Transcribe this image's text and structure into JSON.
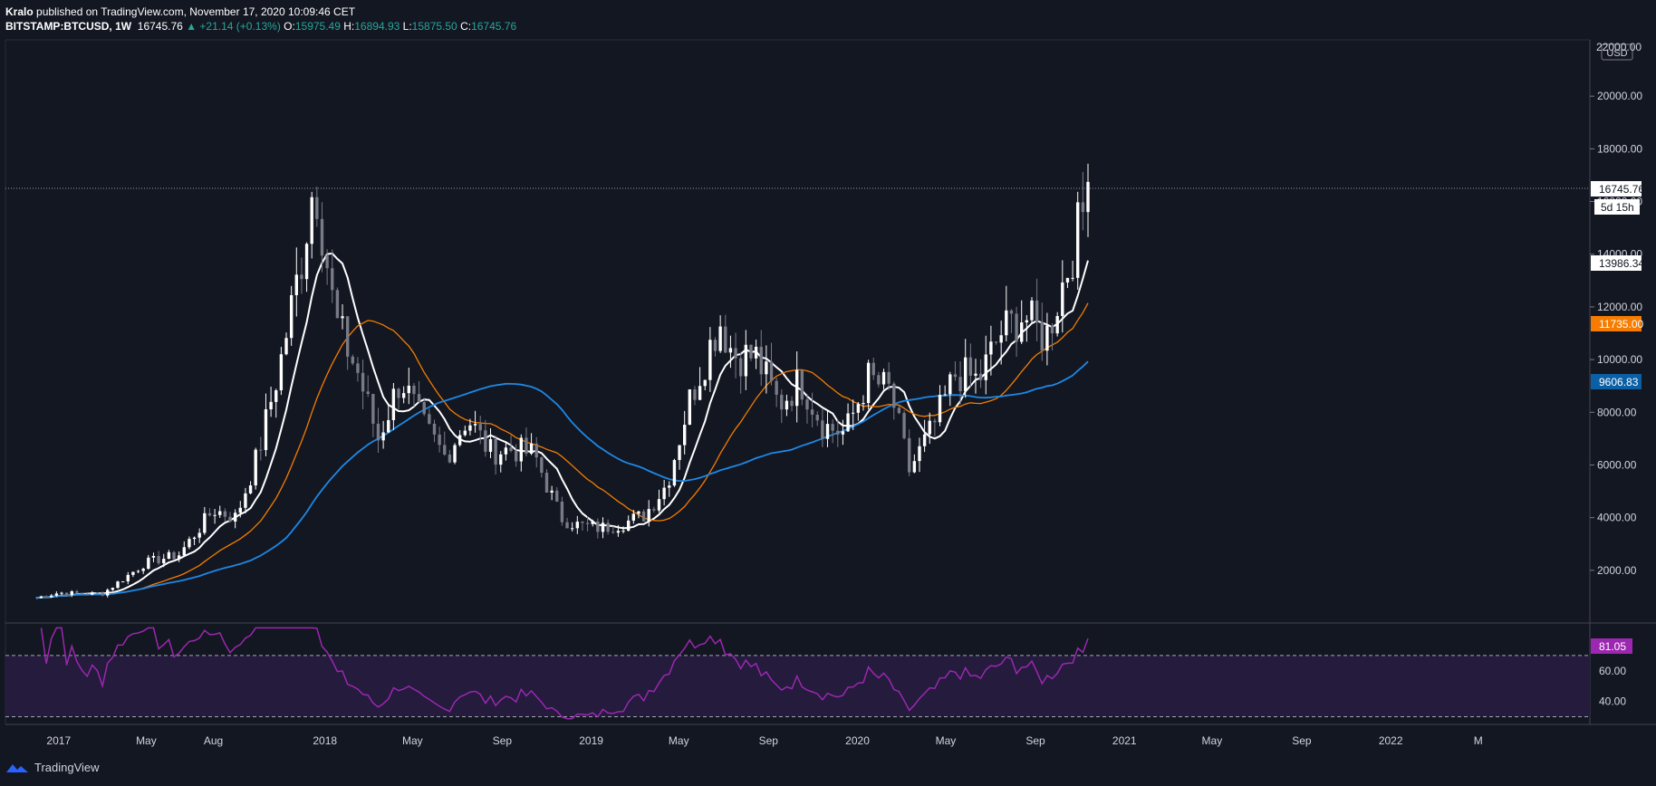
{
  "header": {
    "author": "Kralo",
    "published": "published on TradingView.com, November 17, 2020 10:09:46 CET"
  },
  "symbol_line": {
    "symbol": "BITSTAMP:BTCUSD, 1W",
    "last": "16745.76",
    "change": "+21.14 (+0.13%)",
    "open_label": "O:",
    "open": "15975.49",
    "high_label": "H:",
    "high": "16894.93",
    "low_label": "L:",
    "low": "15875.50",
    "close_label": "C:",
    "close": "16745.76"
  },
  "price_axis": {
    "currency": "USD",
    "ticks": [
      "20000.00",
      "18000.00",
      "16000.00",
      "14000.00",
      "12000.00",
      "10000.00",
      "8000.00",
      "6000.00",
      "4000.00",
      "2000.00"
    ],
    "top_label": "22000.00",
    "labels": {
      "last_price": "16745.76",
      "countdown": "5d 15h",
      "ma_white": "13986.34",
      "ma_orange": "11735.00",
      "ma_blue": "9606.83"
    }
  },
  "rsi_axis": {
    "ticks": [
      "60.00",
      "40.00"
    ],
    "value_label": "81.05"
  },
  "time_axis": {
    "labels": [
      "2017",
      "May",
      "Aug",
      "2018",
      "May",
      "Sep",
      "2019",
      "May",
      "Sep",
      "2020",
      "May",
      "Sep",
      "2021",
      "May",
      "Sep",
      "2022",
      "M"
    ]
  },
  "footer": {
    "brand": "TradingView"
  },
  "colors": {
    "background": "#131722",
    "up_candle": "#ffffff",
    "down_candle": "#787b86",
    "ma_white": "#ffffff",
    "ma_orange": "#f57c00",
    "ma_blue": "#1e88e5",
    "rsi_line": "#9c27b0",
    "rsi_band": "#2a1f45"
  },
  "chart_data": {
    "type": "candlestick",
    "x_unit": "date (weekly candles)",
    "y_unit": "USD",
    "ylim": [
      0,
      22000
    ],
    "series": [
      {
        "name": "BTCUSD",
        "x": [
          "2016-12-01",
          "2017-01-01",
          "2017-03-01",
          "2017-05-01",
          "2017-06-15",
          "2017-08-01",
          "2017-09-01",
          "2017-10-01",
          "2017-11-01",
          "2017-12-01",
          "2017-12-18",
          "2018-01-15",
          "2018-02-15",
          "2018-03-15",
          "2018-04-15",
          "2018-05-15",
          "2018-06-15",
          "2018-07-15",
          "2018-08-15",
          "2018-09-15",
          "2018-10-15",
          "2018-11-20",
          "2018-12-15",
          "2019-01-15",
          "2019-02-15",
          "2019-03-15",
          "2019-04-15",
          "2019-05-15",
          "2019-06-26",
          "2019-07-15",
          "2019-08-15",
          "2019-09-15",
          "2019-10-15",
          "2019-11-15",
          "2019-12-15",
          "2020-01-15",
          "2020-02-15",
          "2020-03-12",
          "2020-04-15",
          "2020-05-15",
          "2020-06-15",
          "2020-07-15",
          "2020-08-15",
          "2020-09-15",
          "2020-10-15",
          "2020-11-17"
        ],
        "close": [
          950,
          1150,
          1100,
          2300,
          2600,
          4300,
          4000,
          6400,
          9900,
          14000,
          17000,
          11500,
          9500,
          7000,
          9300,
          7500,
          6300,
          7800,
          6500,
          6600,
          6400,
          4000,
          3700,
          3600,
          3800,
          4100,
          5300,
          8400,
          11500,
          10200,
          10100,
          8300,
          9200,
          7500,
          7200,
          9300,
          8800,
          5800,
          7500,
          9500,
          9200,
          11000,
          11700,
          10800,
          13500,
          16745
        ]
      },
      {
        "name": "MA (white)",
        "last": 13986.34
      },
      {
        "name": "MA (orange)",
        "last": 11735.0
      },
      {
        "name": "MA (blue)",
        "last": 9606.83
      }
    ],
    "rsi": {
      "last": 81.05,
      "levels": [
        70,
        30
      ],
      "ylim": [
        25,
        90
      ]
    }
  }
}
